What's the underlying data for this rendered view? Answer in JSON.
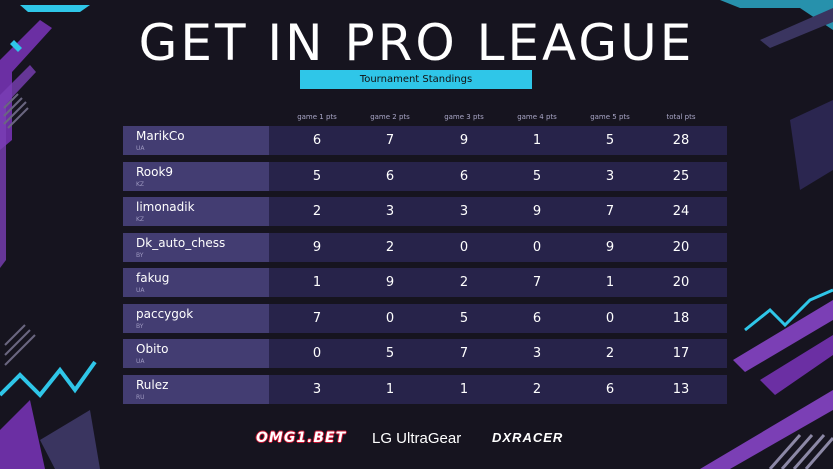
{
  "title": "GET IN PRO LEAGUE",
  "subtitle": "Tournament Standings",
  "columns": [
    "game 1 pts",
    "game 2 pts",
    "game 3 pts",
    "game 4 pts",
    "game 5 pts",
    "total pts"
  ],
  "players": [
    {
      "name": "MarikCo",
      "country": "UA",
      "scores": [
        "6",
        "7",
        "9",
        "1",
        "5"
      ],
      "total": "28"
    },
    {
      "name": "Rook9",
      "country": "KZ",
      "scores": [
        "5",
        "6",
        "6",
        "5",
        "3"
      ],
      "total": "25"
    },
    {
      "name": "limonadik",
      "country": "KZ",
      "scores": [
        "2",
        "3",
        "3",
        "9",
        "7"
      ],
      "total": "24"
    },
    {
      "name": "Dk_auto_chess",
      "country": "BY",
      "scores": [
        "9",
        "2",
        "0",
        "0",
        "9"
      ],
      "total": "20"
    },
    {
      "name": "fakug",
      "country": "UA",
      "scores": [
        "1",
        "9",
        "2",
        "7",
        "1"
      ],
      "total": "20"
    },
    {
      "name": "paccygok",
      "country": "BY",
      "scores": [
        "7",
        "0",
        "5",
        "6",
        "0"
      ],
      "total": "18"
    },
    {
      "name": "Obito",
      "country": "UA",
      "scores": [
        "0",
        "5",
        "7",
        "3",
        "2"
      ],
      "total": "17"
    },
    {
      "name": "Rulez",
      "country": "RU",
      "scores": [
        "3",
        "1",
        "1",
        "2",
        "6"
      ],
      "total": "13"
    }
  ],
  "sponsors": {
    "omg": "OMG1.BET",
    "lg": "LG UltraGear",
    "dxracer": "DXRACER"
  },
  "colors": {
    "accent": "#2fc6e8",
    "purple": "#7b3fb5",
    "row_bg": "#27234a",
    "name_bg": "#433d72",
    "background": "#16141f"
  }
}
